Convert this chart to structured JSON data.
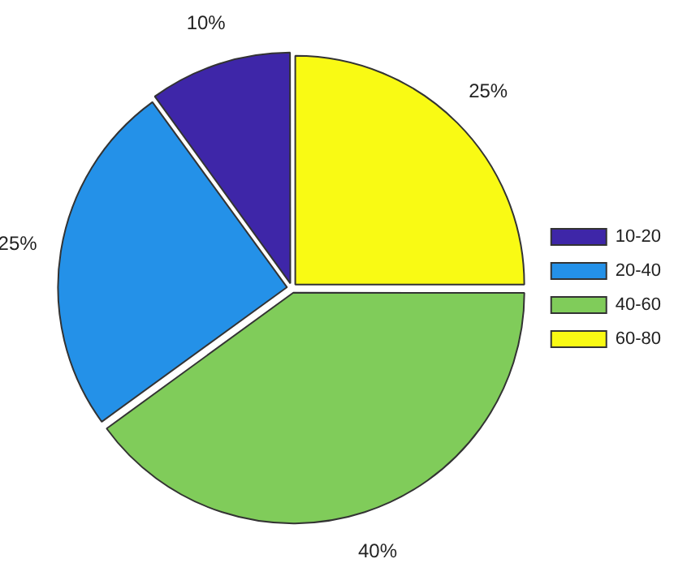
{
  "chart_data": {
    "type": "pie",
    "categories": [
      "10-20",
      "20-40",
      "40-60",
      "60-80"
    ],
    "values": [
      10,
      25,
      40,
      25
    ],
    "colors": [
      "#3e26a8",
      "#2491e8",
      "#80cc5a",
      "#f9fa14"
    ],
    "value_labels": [
      "10%",
      "25%",
      "40%",
      "25%"
    ],
    "legend": "right"
  }
}
